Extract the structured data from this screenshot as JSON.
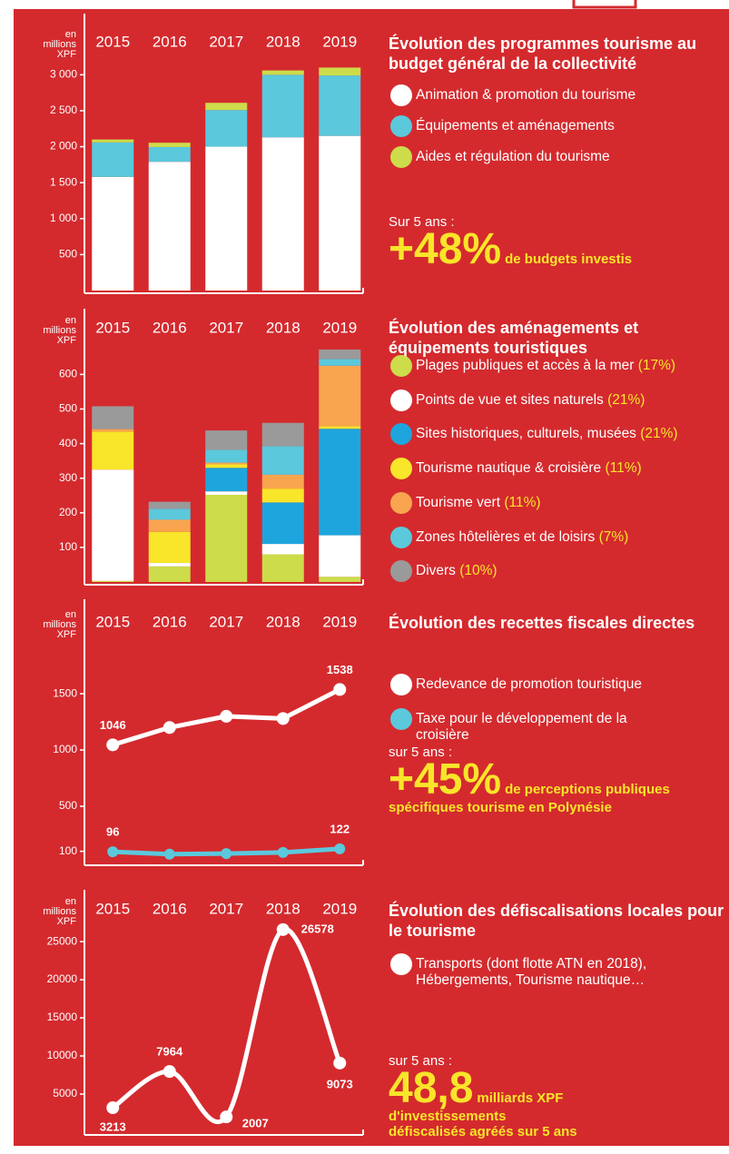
{
  "chart_data": [
    {
      "type": "bar",
      "stacked": true,
      "unit_label": "en millions XPF",
      "title": "Évolution des programmes tourisme au budget général de la collectivité",
      "categories": [
        "2015",
        "2016",
        "2017",
        "2018",
        "2019"
      ],
      "series": [
        {
          "name": "Animation & promotion du tourisme",
          "color": "#ffffff",
          "values": [
            1580,
            1790,
            2000,
            2130,
            2150
          ]
        },
        {
          "name": "Équipements et aménagements",
          "color": "#5bc8dc",
          "values": [
            480,
            205,
            510,
            870,
            840
          ]
        },
        {
          "name": "Aides et régulation du tourisme",
          "color": "#cddc4a",
          "values": [
            40,
            60,
            100,
            60,
            110
          ]
        }
      ],
      "ylim": [
        0,
        3850
      ],
      "yticks": [
        500,
        {
          "value": 1000,
          "label": "1 000"
        },
        {
          "value": 1500,
          "label": "1 500"
        },
        {
          "value": 2000,
          "label": "2 000"
        },
        {
          "value": 2500,
          "label": "2 500"
        },
        {
          "value": 3000,
          "label": "3 000"
        }
      ],
      "note": {
        "intro": "Sur 5 ans :",
        "highlight": "+48%",
        "lines": [
          "de budgets investis"
        ]
      }
    },
    {
      "type": "bar",
      "stacked": true,
      "unit_label": "en millions XPF",
      "title": "Évolution des aménagements et équipements touristiques",
      "categories": [
        "2015",
        "2016",
        "2017",
        "2018",
        "2019"
      ],
      "series": [
        {
          "name": "Plages publiques et accès à la mer",
          "share": "(17%)",
          "color": "#cddc4a",
          "values": [
            3,
            45,
            252,
            80,
            15
          ]
        },
        {
          "name": "Points de vue et sites naturels",
          "share": "(21%)",
          "color": "#ffffff",
          "values": [
            322,
            10,
            10,
            30,
            120
          ]
        },
        {
          "name": "Sites historiques, culturels, musées",
          "share": "(21%)",
          "color": "#1ea5dd",
          "values": [
            0,
            0,
            68,
            120,
            308
          ]
        },
        {
          "name": "Tourisme nautique & croisière",
          "share": "(11%)",
          "color": "#f9e52a",
          "values": [
            110,
            90,
            10,
            40,
            7
          ]
        },
        {
          "name": "Tourisme vert",
          "share": "(11%)",
          "color": "#f9a54f",
          "values": [
            7,
            35,
            5,
            40,
            175
          ]
        },
        {
          "name": "Zones hôtelières et de loisirs",
          "share": "(7%)",
          "color": "#5bc8dc",
          "values": [
            0,
            32,
            37,
            83,
            20
          ]
        },
        {
          "name": "Divers",
          "share": "(10%)",
          "color": "#9a9a9a",
          "values": [
            66,
            20,
            56,
            67,
            27
          ]
        }
      ],
      "ylim": [
        0,
        790
      ],
      "yticks": [
        100,
        200,
        300,
        400,
        500,
        600
      ]
    },
    {
      "type": "line",
      "unit_label": "en millions XPF",
      "title": "Évolution des recettes fiscales directes",
      "categories": [
        "2015",
        "2016",
        "2017",
        "2018",
        "2019"
      ],
      "series": [
        {
          "name": "Redevance de promotion touristique",
          "color": "#ffffff",
          "values": [
            1046,
            1200,
            1300,
            1280,
            1538
          ]
        },
        {
          "name": "Taxe pour le développement de la croisière",
          "color": "#5bc8dc",
          "values": [
            96,
            75,
            80,
            90,
            122
          ]
        }
      ],
      "ylim": [
        0,
        2340
      ],
      "yticks": [
        100,
        500,
        1000,
        1500
      ],
      "data_labels": "ends",
      "note": {
        "intro": "sur 5 ans :",
        "highlight": "+45%",
        "lines": [
          "de perceptions publiques",
          "spécifiques tourisme en Polynésie"
        ]
      }
    },
    {
      "type": "line",
      "smooth": true,
      "unit_label": "en millions XPF",
      "title": "Évolution des défiscalisations locales pour le tourisme",
      "categories": [
        "2015",
        "2016",
        "2017",
        "2018",
        "2019"
      ],
      "series": [
        {
          "name": "Transports (dont flotte ATN en 2018), Hébergements, Tourisme nautique…",
          "color": "#ffffff",
          "values": [
            3213,
            7964,
            2007,
            26578,
            9073
          ]
        }
      ],
      "ylim": [
        0,
        31800
      ],
      "yticks": [
        5000,
        10000,
        15000,
        20000,
        25000
      ],
      "data_labels": "all",
      "note": {
        "intro": "sur 5 ans :",
        "highlight": "48,8",
        "lines": [
          "milliards XPF",
          "d'investissements",
          "défiscalisés agréés sur 5 ans"
        ]
      }
    }
  ]
}
